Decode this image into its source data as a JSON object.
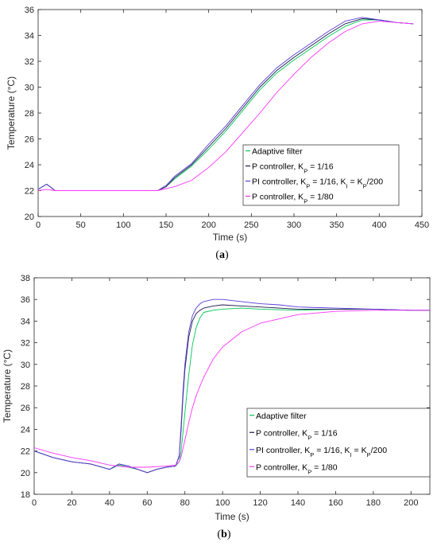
{
  "chart_data": [
    {
      "type": "line",
      "label": "(a)",
      "xlabel": "Time (s)",
      "ylabel": "Temperature (°C)",
      "xlim": [
        0,
        450
      ],
      "ylim": [
        20,
        36
      ],
      "xticks": [
        0,
        50,
        100,
        150,
        200,
        250,
        300,
        350,
        400,
        450
      ],
      "yticks": [
        20,
        22,
        24,
        26,
        28,
        30,
        32,
        34,
        36
      ],
      "legend_position": "bottom-right",
      "series": [
        {
          "name": "Adaptive filter",
          "color": "#00c853",
          "x": [
            0,
            10,
            20,
            50,
            100,
            140,
            150,
            160,
            180,
            200,
            220,
            240,
            260,
            280,
            300,
            320,
            340,
            360,
            380,
            400,
            420,
            440
          ],
          "y": [
            22.1,
            22.5,
            22.0,
            22.0,
            22.0,
            22.0,
            22.3,
            22.9,
            23.9,
            25.2,
            26.6,
            28.2,
            29.8,
            31.1,
            32.1,
            33.0,
            33.9,
            34.7,
            35.2,
            35.2,
            35.0,
            34.9
          ]
        },
        {
          "name": "P controller, KP = 1/16",
          "color": "#1a1a4d",
          "x": [
            0,
            10,
            20,
            50,
            100,
            140,
            150,
            160,
            180,
            200,
            220,
            240,
            260,
            280,
            300,
            320,
            340,
            360,
            380,
            400,
            420,
            440
          ],
          "y": [
            22.1,
            22.5,
            22.0,
            22.0,
            22.0,
            22.0,
            22.3,
            23.0,
            24.0,
            25.4,
            26.8,
            28.4,
            30.0,
            31.3,
            32.3,
            33.2,
            34.1,
            34.9,
            35.3,
            35.2,
            35.0,
            34.9
          ]
        },
        {
          "name": "PI controller, KP = 1/16, KI = KP/200",
          "color": "#5b3cd9",
          "x": [
            0,
            10,
            20,
            50,
            100,
            140,
            150,
            160,
            180,
            200,
            220,
            240,
            260,
            280,
            300,
            320,
            340,
            360,
            380,
            400,
            420,
            440
          ],
          "y": [
            22.1,
            22.5,
            22.0,
            22.0,
            22.0,
            22.0,
            22.4,
            23.1,
            24.1,
            25.6,
            27.0,
            28.6,
            30.2,
            31.5,
            32.5,
            33.4,
            34.3,
            35.1,
            35.4,
            35.2,
            35.0,
            34.9
          ]
        },
        {
          "name": "P controller, KP = 1/80",
          "color": "#ff33ff",
          "x": [
            0,
            10,
            20,
            50,
            100,
            140,
            160,
            180,
            200,
            220,
            240,
            260,
            280,
            300,
            320,
            340,
            360,
            380,
            400,
            420,
            440
          ],
          "y": [
            22.0,
            22.1,
            22.0,
            22.0,
            22.0,
            22.0,
            22.3,
            22.8,
            23.8,
            25.0,
            26.5,
            28.0,
            29.6,
            31.0,
            32.3,
            33.4,
            34.3,
            34.9,
            35.1,
            35.0,
            34.9
          ]
        }
      ]
    },
    {
      "type": "line",
      "label": "(b)",
      "xlabel": "Time (s)",
      "ylabel": "Temperature (°C)",
      "xlim": [
        0,
        210
      ],
      "ylim": [
        18,
        38
      ],
      "xticks": [
        0,
        20,
        40,
        60,
        80,
        100,
        120,
        140,
        160,
        180,
        200
      ],
      "yticks": [
        18,
        20,
        22,
        24,
        26,
        28,
        30,
        32,
        34,
        36,
        38
      ],
      "legend_position": "bottom-right",
      "series": [
        {
          "name": "Adaptive filter",
          "color": "#00c853",
          "x": [
            0,
            10,
            20,
            30,
            40,
            45,
            50,
            55,
            60,
            65,
            70,
            75,
            77,
            78,
            80,
            82,
            84,
            86,
            88,
            90,
            95,
            100,
            110,
            120,
            140,
            160,
            180,
            200,
            210
          ],
          "y": [
            22.0,
            21.4,
            21.0,
            20.8,
            20.3,
            20.7,
            20.5,
            20.3,
            20.0,
            20.3,
            20.5,
            20.6,
            21.0,
            22.0,
            25.5,
            29.0,
            31.8,
            33.4,
            34.3,
            34.8,
            35.0,
            35.1,
            35.2,
            35.1,
            35.0,
            35.1,
            35.1,
            35.0,
            35.0
          ]
        },
        {
          "name": "P controller, KP = 1/16",
          "color": "#1a1a4d",
          "x": [
            0,
            10,
            20,
            30,
            40,
            45,
            50,
            55,
            60,
            65,
            70,
            75,
            77,
            78,
            79,
            80,
            82,
            84,
            86,
            88,
            90,
            95,
            100,
            110,
            120,
            140,
            160,
            180,
            200,
            210
          ],
          "y": [
            22.0,
            21.4,
            21.0,
            20.8,
            20.3,
            20.8,
            20.6,
            20.3,
            20.0,
            20.3,
            20.5,
            20.6,
            21.5,
            24.0,
            27.0,
            29.5,
            32.5,
            34.0,
            34.7,
            35.0,
            35.2,
            35.4,
            35.5,
            35.4,
            35.3,
            35.1,
            35.1,
            35.1,
            35.0,
            35.0
          ]
        },
        {
          "name": "PI controller, KP = 1/16, KI = KP/200",
          "color": "#5b3cd9",
          "x": [
            0,
            10,
            20,
            30,
            40,
            45,
            50,
            55,
            60,
            65,
            70,
            75,
            77,
            78,
            79,
            80,
            82,
            84,
            86,
            88,
            90,
            95,
            100,
            110,
            120,
            130,
            140,
            160,
            180,
            200,
            210
          ],
          "y": [
            22.0,
            21.4,
            21.0,
            20.8,
            20.3,
            20.8,
            20.6,
            20.3,
            20.0,
            20.3,
            20.5,
            20.6,
            21.6,
            24.5,
            27.5,
            30.0,
            33.0,
            34.5,
            35.2,
            35.6,
            35.8,
            36.0,
            36.0,
            35.8,
            35.6,
            35.5,
            35.3,
            35.2,
            35.1,
            35.0,
            35.0
          ]
        },
        {
          "name": "P controller, KP = 1/80",
          "color": "#ff33ff",
          "x": [
            0,
            10,
            20,
            30,
            40,
            50,
            60,
            70,
            75,
            77,
            78,
            80,
            82,
            84,
            86,
            88,
            90,
            95,
            100,
            110,
            120,
            140,
            160,
            180,
            200,
            210
          ],
          "y": [
            22.3,
            21.8,
            21.4,
            21.1,
            20.7,
            20.5,
            20.5,
            20.6,
            20.7,
            21.0,
            21.5,
            23.0,
            24.6,
            26.0,
            27.1,
            28.0,
            28.8,
            30.5,
            31.6,
            33.0,
            33.8,
            34.6,
            34.9,
            35.0,
            35.0,
            35.0
          ]
        }
      ]
    }
  ],
  "legend_labels": [
    [
      {
        "text": "Adaptive filter",
        "sub": []
      },
      {
        "text": "P controller, K",
        "parts": [
          [
            "P controller, K",
            ""
          ],
          [
            "P",
            "sub"
          ],
          [
            " = 1/16",
            ""
          ]
        ]
      },
      {
        "text": "PI controller, K",
        "parts": [
          [
            "PI controller, K",
            ""
          ],
          [
            "P",
            "sub"
          ],
          [
            " = 1/16, K",
            ""
          ],
          [
            "I",
            "sub"
          ],
          [
            " = K",
            ""
          ],
          [
            "P",
            "sub"
          ],
          [
            "/200",
            ""
          ]
        ]
      },
      {
        "text": "P controller, K",
        "parts": [
          [
            "P controller, K",
            ""
          ],
          [
            "P",
            "sub"
          ],
          [
            " = 1/80",
            ""
          ]
        ]
      }
    ],
    [
      {
        "text": "Adaptive filter",
        "sub": []
      },
      {
        "text": "P controller, K",
        "parts": [
          [
            "P controller, K",
            ""
          ],
          [
            "P",
            "sub"
          ],
          [
            " = 1/16",
            ""
          ]
        ]
      },
      {
        "text": "PI controller, K",
        "parts": [
          [
            "PI controller, K",
            ""
          ],
          [
            "P",
            "sub"
          ],
          [
            " = 1/16, K",
            ""
          ],
          [
            "I",
            "sub"
          ],
          [
            " = K",
            ""
          ],
          [
            "P",
            "sub"
          ],
          [
            "/200",
            ""
          ]
        ]
      },
      {
        "text": "P controller, K",
        "parts": [
          [
            "P controller, K",
            ""
          ],
          [
            "P",
            "sub"
          ],
          [
            " = 1/80",
            ""
          ]
        ]
      }
    ]
  ]
}
